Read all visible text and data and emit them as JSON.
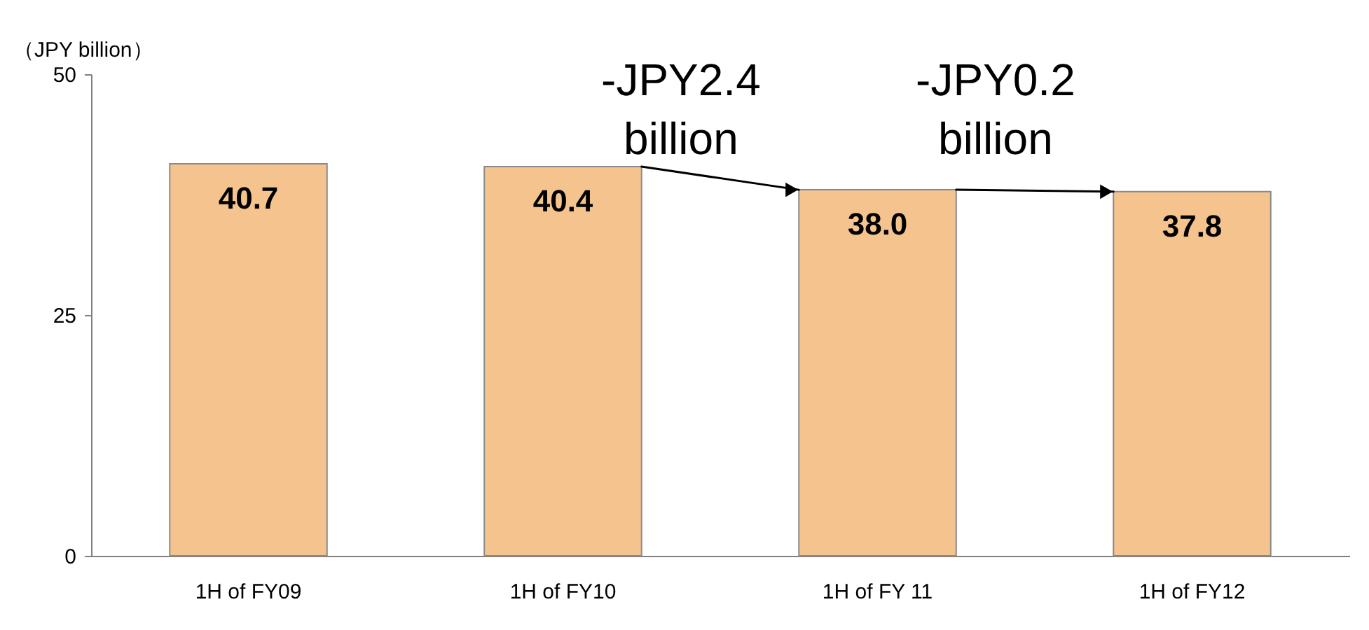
{
  "chart_data": {
    "type": "bar",
    "ylabel": "（JPY billion）",
    "categories": [
      "1H of FY09",
      "1H of FY10",
      "1H of FY 11",
      "1H of FY12"
    ],
    "values": [
      40.7,
      40.4,
      38.0,
      37.8
    ],
    "value_labels": [
      "40.7",
      "40.4",
      "38.0",
      "37.8"
    ],
    "color": "#f5c38e",
    "ylim": [
      0,
      50
    ],
    "yticks": [
      0,
      25,
      50
    ],
    "grid": false,
    "annotations": [
      {
        "text": "-JPY2.4 billion",
        "x": "1H of FY 11",
        "y": 38.0
      },
      {
        "text": "-JPY0.2 billion",
        "x": "1H of FY12",
        "y": 37.8
      }
    ]
  }
}
